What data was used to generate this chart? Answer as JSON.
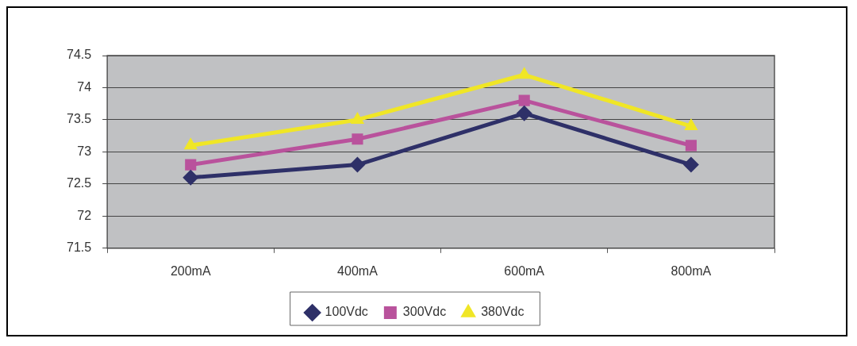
{
  "chart_data": {
    "type": "line",
    "categories": [
      "200mA",
      "400mA",
      "600mA",
      "800mA"
    ],
    "series": [
      {
        "name": "100Vdc",
        "color": "#2e3068",
        "values": [
          72.6,
          72.8,
          73.6,
          72.8
        ],
        "marker": "diamond"
      },
      {
        "name": "300Vdc",
        "color": "#b9529c",
        "values": [
          72.8,
          73.2,
          73.8,
          73.1
        ],
        "marker": "square"
      },
      {
        "name": "380Vdc",
        "color": "#f0e626",
        "values": [
          73.1,
          73.5,
          74.2,
          73.4
        ],
        "marker": "triangle"
      }
    ],
    "ylim": [
      71.5,
      74.5
    ],
    "yticks": [
      71.5,
      72,
      72.5,
      73,
      73.5,
      74,
      74.5
    ],
    "grid": "y",
    "legend": "bottom"
  }
}
